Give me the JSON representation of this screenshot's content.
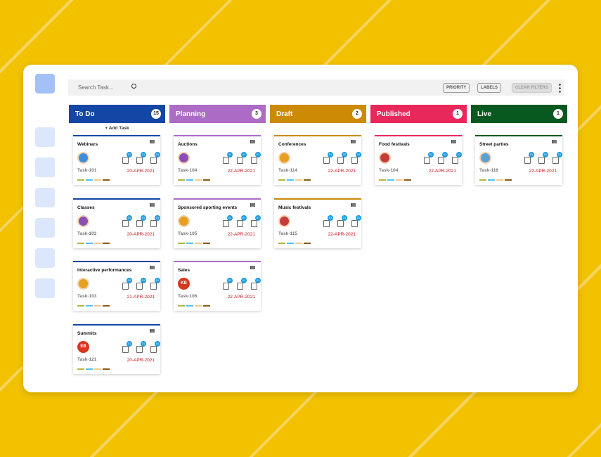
{
  "search": {
    "placeholder": "Search Task..."
  },
  "filters": [
    "PRIORITY",
    "LABELS",
    "CLEAR FILTERS"
  ],
  "add_task": "+ Add Task",
  "columns": [
    {
      "name": "To Do",
      "count": "15",
      "color": "#1446a6",
      "cards": [
        {
          "title": "Webinars",
          "task": "Task-101",
          "date": "20-APR-2021",
          "badges": [
            "01",
            "01",
            "01"
          ]
        },
        {
          "title": "Classes",
          "task": "Task-102",
          "date": "20-APR-2021",
          "badges": [
            "01",
            "01",
            "01"
          ]
        },
        {
          "title": "Interactive performances",
          "task": "Task-103",
          "date": "21-APR-2021",
          "badges": [
            "01",
            "01",
            "01"
          ]
        },
        {
          "title": "Summits",
          "task": "Task-121",
          "date": "20-APR-2021",
          "initials": "EB",
          "badges": [
            "01",
            "01",
            "01"
          ]
        }
      ]
    },
    {
      "name": "Planning",
      "count": "3",
      "color": "#ac6bc4",
      "cards": [
        {
          "title": "Auctions",
          "task": "Task-104",
          "date": "22-APR-2021",
          "badges": [
            "01",
            "01",
            "01"
          ]
        },
        {
          "title": "Sponsored sporting events",
          "task": "Task-105",
          "date": "22-APR-2021",
          "badges": [
            "01",
            "01",
            "01"
          ]
        },
        {
          "title": "Sales",
          "task": "Task-106",
          "date": "22-APR-2021",
          "initials": "KB",
          "badges": [
            "01",
            "01",
            "01"
          ]
        }
      ]
    },
    {
      "name": "Draft",
      "count": "2",
      "color": "#cc8a05",
      "cards": [
        {
          "title": "Conferences",
          "task": "Task-114",
          "date": "22-APR-2021",
          "badges": [
            "01",
            "02",
            "01"
          ]
        },
        {
          "title": "Music festivals",
          "task": "Task-115",
          "date": "22-APR-2021",
          "badges": [
            "01",
            "01",
            "01"
          ]
        }
      ]
    },
    {
      "name": "Published",
      "count": "1",
      "color": "#e8285a",
      "cards": [
        {
          "title": "Food festivals",
          "task": "Task-104",
          "date": "22-APR-2021",
          "badges": [
            "01",
            "01",
            "01"
          ]
        }
      ]
    },
    {
      "name": "Live",
      "count": "1",
      "color": "#08591f",
      "cards": [
        {
          "title": "Street parties",
          "task": "Task-116",
          "date": "22-APR-2021",
          "badges": [
            "01",
            "01",
            "01"
          ]
        }
      ]
    }
  ]
}
